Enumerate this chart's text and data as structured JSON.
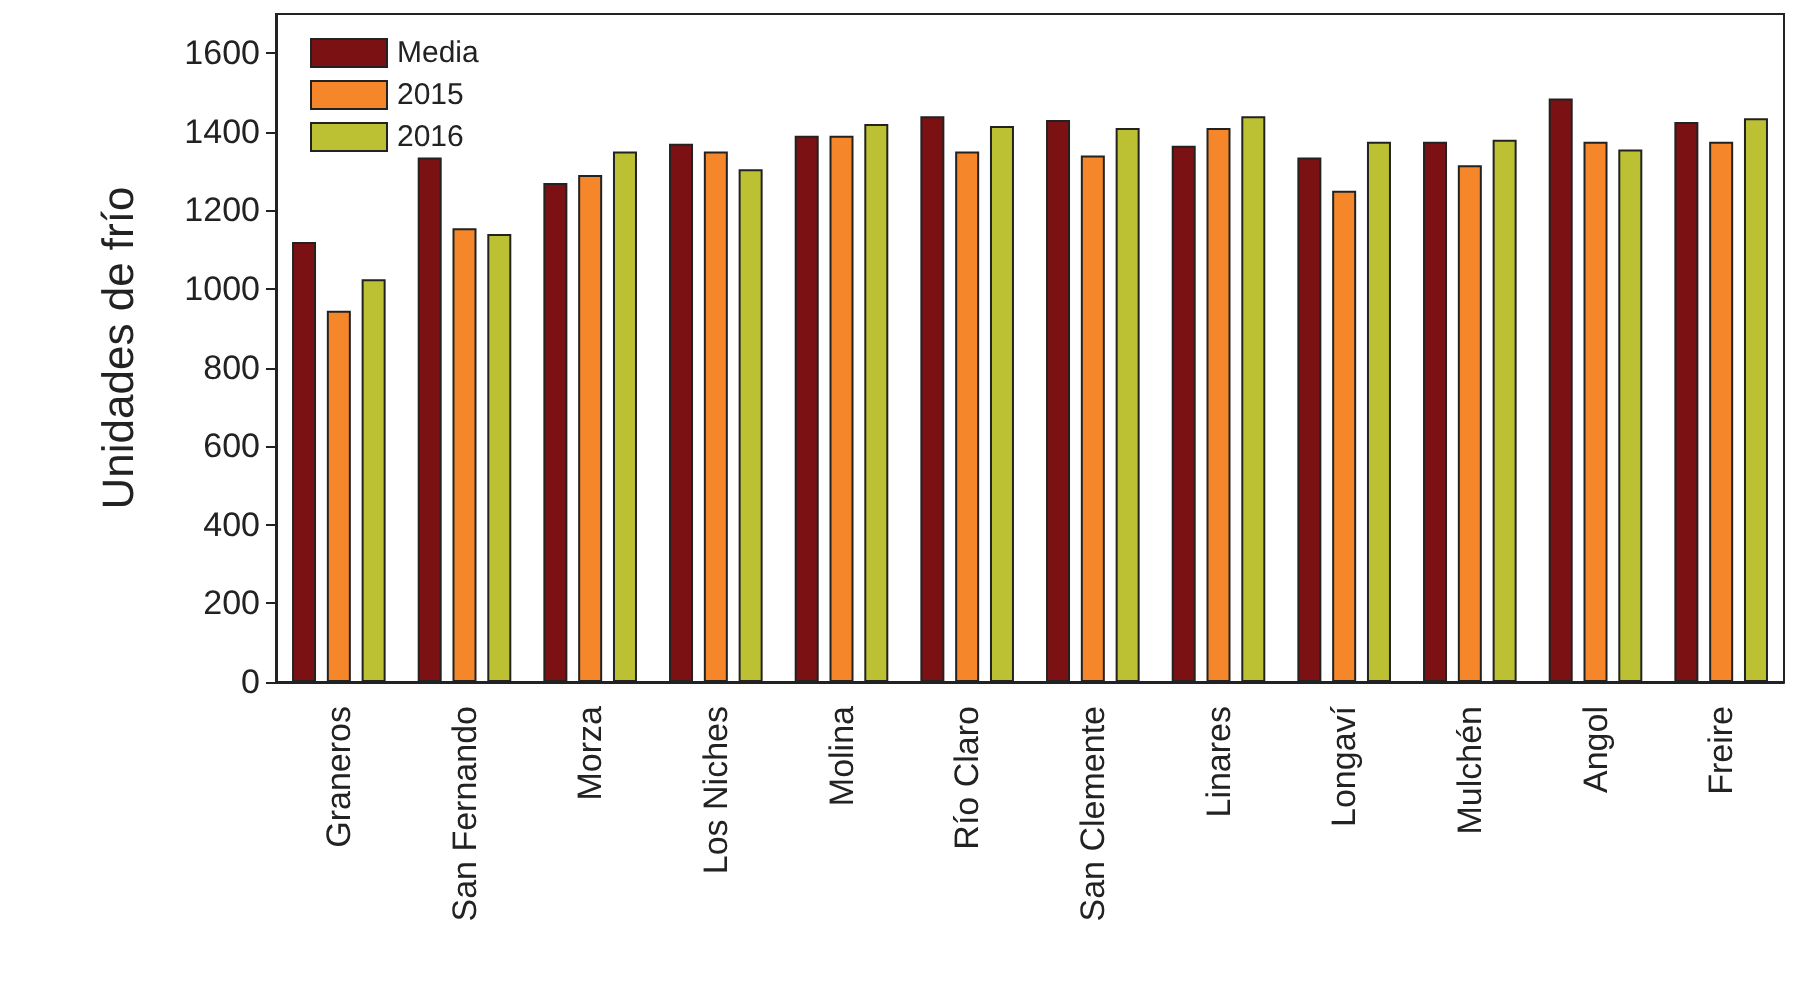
{
  "chart_data": {
    "type": "bar",
    "ylabel": "Unidades de frío",
    "categories": [
      "Graneros",
      "San Fernando",
      "Morza",
      "Los Niches",
      "Molina",
      "Río Claro",
      "San Clemente",
      "Linares",
      "Longaví",
      "Mulchén",
      "Angol",
      "Freire"
    ],
    "series": [
      {
        "name": "Media",
        "color": "#7b1113",
        "values": [
          1120,
          1335,
          1270,
          1370,
          1390,
          1440,
          1430,
          1365,
          1335,
          1375,
          1485,
          1425
        ]
      },
      {
        "name": "2015",
        "color": "#f5862a",
        "values": [
          945,
          1155,
          1290,
          1350,
          1390,
          1350,
          1340,
          1410,
          1250,
          1315,
          1375,
          1375
        ]
      },
      {
        "name": "2016",
        "color": "#bcc133",
        "values": [
          1025,
          1140,
          1350,
          1305,
          1420,
          1415,
          1410,
          1440,
          1375,
          1380,
          1355,
          1435
        ]
      }
    ],
    "ylim": [
      0,
      1700
    ],
    "yticks": [
      0,
      200,
      400,
      600,
      800,
      1000,
      1200,
      1400,
      1600
    ],
    "grid": false,
    "legend": "top left"
  }
}
